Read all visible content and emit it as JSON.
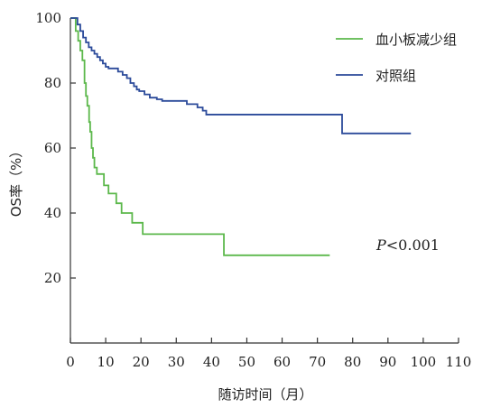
{
  "chart_data": {
    "type": "line",
    "subtype": "kaplan-meier",
    "title": "",
    "xlabel": "随访时间（月）",
    "ylabel": "OS率（%）",
    "xlim": [
      0,
      110
    ],
    "ylim": [
      0,
      100
    ],
    "xticks": [
      0,
      10,
      20,
      30,
      40,
      50,
      60,
      70,
      80,
      90,
      100,
      110
    ],
    "yticks": [
      20,
      40,
      60,
      80,
      100
    ],
    "grid": false,
    "legend_position": "top-right",
    "annotation": {
      "italic": "P",
      "text": "<0.001"
    },
    "series": [
      {
        "name": "血小板减少组",
        "color": "#5cb84b",
        "steps": [
          [
            0,
            100
          ],
          [
            1.5,
            100
          ],
          [
            1.5,
            96
          ],
          [
            2.2,
            96
          ],
          [
            2.2,
            93
          ],
          [
            2.8,
            93
          ],
          [
            2.8,
            90
          ],
          [
            3.4,
            90
          ],
          [
            3.4,
            87
          ],
          [
            4.0,
            87
          ],
          [
            4.0,
            80
          ],
          [
            4.4,
            80
          ],
          [
            4.4,
            76
          ],
          [
            4.8,
            76
          ],
          [
            4.8,
            73
          ],
          [
            5.3,
            73
          ],
          [
            5.3,
            68
          ],
          [
            5.6,
            68
          ],
          [
            5.6,
            65
          ],
          [
            6.0,
            65
          ],
          [
            6.0,
            60
          ],
          [
            6.4,
            60
          ],
          [
            6.4,
            57
          ],
          [
            6.8,
            57
          ],
          [
            6.8,
            54
          ],
          [
            7.5,
            54
          ],
          [
            7.5,
            52
          ],
          [
            9.5,
            52
          ],
          [
            9.5,
            48.5
          ],
          [
            10.8,
            48.5
          ],
          [
            10.8,
            46
          ],
          [
            13.0,
            46
          ],
          [
            13.0,
            43
          ],
          [
            14.5,
            43
          ],
          [
            14.5,
            40
          ],
          [
            17.5,
            40
          ],
          [
            17.5,
            37
          ],
          [
            20.5,
            37
          ],
          [
            20.5,
            33.5
          ],
          [
            43.5,
            33.5
          ],
          [
            43.5,
            27
          ],
          [
            73.5,
            27
          ]
        ]
      },
      {
        "name": "对照组",
        "color": "#2b4a9a",
        "steps": [
          [
            0,
            100
          ],
          [
            2.0,
            100
          ],
          [
            2.0,
            98
          ],
          [
            2.8,
            98
          ],
          [
            2.8,
            96
          ],
          [
            3.6,
            96
          ],
          [
            3.6,
            94
          ],
          [
            4.4,
            94
          ],
          [
            4.4,
            92.5
          ],
          [
            5.2,
            92.5
          ],
          [
            5.2,
            91
          ],
          [
            6.0,
            91
          ],
          [
            6.0,
            90
          ],
          [
            6.8,
            90
          ],
          [
            6.8,
            89
          ],
          [
            7.6,
            89
          ],
          [
            7.6,
            88
          ],
          [
            8.4,
            88
          ],
          [
            8.4,
            87
          ],
          [
            9.2,
            87
          ],
          [
            9.2,
            86
          ],
          [
            10.0,
            86
          ],
          [
            10.0,
            85
          ],
          [
            10.8,
            85
          ],
          [
            10.8,
            84.5
          ],
          [
            13.5,
            84.5
          ],
          [
            13.5,
            83.5
          ],
          [
            14.8,
            83.5
          ],
          [
            14.8,
            82.5
          ],
          [
            16.0,
            82.5
          ],
          [
            16.0,
            81.5
          ],
          [
            17.0,
            81.5
          ],
          [
            17.0,
            80
          ],
          [
            18.0,
            80
          ],
          [
            18.0,
            79
          ],
          [
            18.8,
            79
          ],
          [
            18.8,
            78
          ],
          [
            19.5,
            78
          ],
          [
            19.5,
            77.5
          ],
          [
            21.0,
            77.5
          ],
          [
            21.0,
            76.5
          ],
          [
            22.5,
            76.5
          ],
          [
            22.5,
            75.5
          ],
          [
            24.5,
            75.5
          ],
          [
            24.5,
            75
          ],
          [
            26.0,
            75
          ],
          [
            26.0,
            74.5
          ],
          [
            33.0,
            74.5
          ],
          [
            33.0,
            73.5
          ],
          [
            36.0,
            73.5
          ],
          [
            36.0,
            72.5
          ],
          [
            37.5,
            72.5
          ],
          [
            37.5,
            71.5
          ],
          [
            38.5,
            71.5
          ],
          [
            38.5,
            70.3
          ],
          [
            77.0,
            70.3
          ],
          [
            77.0,
            64.5
          ],
          [
            96.5,
            64.5
          ]
        ]
      }
    ]
  }
}
